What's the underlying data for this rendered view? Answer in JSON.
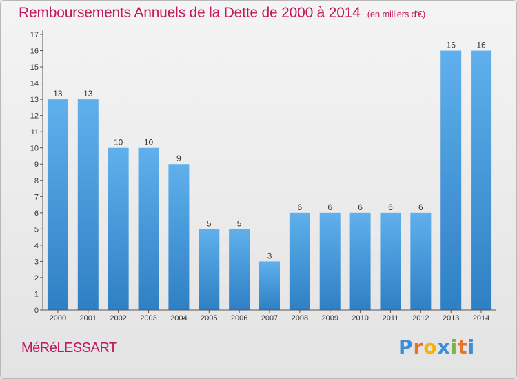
{
  "title": "Remboursements Annuels de la Dette de 2000 à 2014",
  "unit_label": "(en milliers d'€)",
  "commune": "MéRéLESSART",
  "logo": {
    "letters": [
      "P",
      "r",
      "o",
      "x",
      "i",
      "t",
      "i"
    ],
    "colors": [
      "#3b8fd6",
      "#e8742a",
      "#f4b400",
      "#3b8fd6",
      "#7cb342",
      "#e8742a",
      "#3b8fd6"
    ]
  },
  "chart_data": {
    "type": "bar",
    "title": "Remboursements Annuels de la Dette de 2000 à 2014",
    "xlabel": "",
    "ylabel": "",
    "categories": [
      "2000",
      "2001",
      "2002",
      "2003",
      "2004",
      "2005",
      "2006",
      "2007",
      "2008",
      "2009",
      "2010",
      "2011",
      "2012",
      "2013",
      "2014"
    ],
    "values": [
      13,
      13,
      10,
      10,
      9,
      5,
      5,
      3,
      6,
      6,
      6,
      6,
      6,
      16,
      16
    ],
    "ylim": [
      0,
      17
    ],
    "yticks": [
      0,
      1,
      2,
      3,
      4,
      5,
      6,
      7,
      8,
      9,
      10,
      11,
      12,
      13,
      14,
      15,
      16,
      17
    ],
    "grid": false,
    "bar_color": "#4a9de0"
  }
}
